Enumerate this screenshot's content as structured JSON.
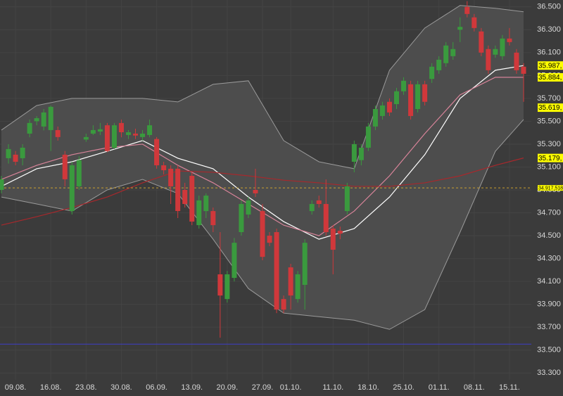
{
  "chart_data": {
    "type": "candlestick",
    "categories": [
      null,
      null,
      "09.08.",
      null,
      null,
      null,
      null,
      "16.08.",
      null,
      null,
      null,
      null,
      "23.08.",
      null,
      null,
      null,
      null,
      "30.08.",
      null,
      null,
      null,
      null,
      "06.09.",
      null,
      null,
      null,
      null,
      "13.09.",
      null,
      null,
      null,
      null,
      "20.09.",
      null,
      null,
      null,
      null,
      "27.09.",
      null,
      null,
      null,
      "01.10.",
      null,
      null,
      null,
      null,
      null,
      "11.10.",
      null,
      null,
      null,
      null,
      "18.10.",
      null,
      null,
      null,
      null,
      "25.10.",
      null,
      null,
      null,
      null,
      "01.11.",
      null,
      null,
      null,
      null,
      "08.11.",
      null,
      null,
      null,
      null,
      "15.11.",
      null,
      null
    ],
    "open": [
      34900,
      35177,
      35208,
      35177,
      35392,
      35500,
      35454,
      35423,
      35423,
      35208,
      34715,
      34931,
      35340,
      35392,
      35410,
      35465,
      35269,
      35485,
      35380,
      35392,
      35362,
      35380,
      35345,
      35115,
      35085,
      35085,
      34900,
      35023,
      34592,
      34715,
      34715,
      34162,
      33946,
      34131,
      34531,
      34685,
      34900,
      34715,
      34500,
      34531,
      33946,
      34223,
      33946,
      34070,
      34715,
      34808,
      34777,
      34562,
      34543,
      34715,
      35146,
      35160,
      35269,
      35454,
      35546,
      35670,
      35650,
      35762,
      35823,
      35607,
      35823,
      35870,
      35946,
      36008,
      36069,
      36300,
      36500,
      36408,
      36285,
      36131,
      36082,
      36069,
      36223,
      36100,
      35977
    ],
    "high": [
      35023,
      35300,
      35240,
      35300,
      35515,
      35545,
      35607,
      35638,
      35454,
      35240,
      35146,
      35195,
      35392,
      35465,
      35485,
      35485,
      35485,
      35515,
      35423,
      35435,
      35423,
      35515,
      35362,
      35146,
      35115,
      35115,
      34962,
      35054,
      34850,
      34870,
      34746,
      34531,
      34192,
      34480,
      34808,
      34838,
      35085,
      34777,
      34531,
      34562,
      33977,
      34254,
      34192,
      34469,
      34808,
      34850,
      34992,
      34592,
      34580,
      34962,
      35331,
      35300,
      35485,
      35638,
      35670,
      35700,
      35792,
      35885,
      35854,
      35854,
      35854,
      36008,
      36069,
      36192,
      36192,
      36408,
      36550,
      36438,
      36315,
      36162,
      36162,
      36254,
      36315,
      36131,
      36008
    ],
    "low": [
      34870,
      35130,
      35115,
      35115,
      35360,
      35465,
      35420,
      35240,
      35331,
      34931,
      34685,
      34900,
      35320,
      35380,
      35380,
      35230,
      35257,
      35360,
      35345,
      35345,
      35331,
      35360,
      35085,
      35035,
      34777,
      34654,
      34746,
      34592,
      34562,
      34654,
      34531,
      33608,
      33915,
      34100,
      34500,
      34654,
      34838,
      34285,
      34408,
      33823,
      33823,
      33854,
      33915,
      33854,
      34685,
      34746,
      34500,
      34162,
      34469,
      34685,
      35054,
      35115,
      35240,
      35423,
      35515,
      35546,
      35607,
      35731,
      35515,
      35577,
      35638,
      35835,
      35915,
      35977,
      36038,
      36192,
      36408,
      36285,
      36069,
      35915,
      36055,
      36038,
      36162,
      35915,
      35670
    ],
    "close": [
      34993,
      35257,
      35146,
      35269,
      35485,
      35527,
      35577,
      35626,
      35362,
      34993,
      35115,
      35160,
      35362,
      35423,
      35430,
      35240,
      35465,
      35404,
      35404,
      35375,
      35392,
      35465,
      35115,
      35072,
      34931,
      34715,
      34777,
      34623,
      34808,
      34850,
      34592,
      33977,
      34162,
      34438,
      34777,
      34808,
      34870,
      34315,
      34438,
      33854,
      33854,
      33977,
      34162,
      34438,
      34777,
      34777,
      34531,
      34377,
      34518,
      34931,
      35300,
      35269,
      35454,
      35607,
      35638,
      35577,
      35762,
      35854,
      35546,
      35823,
      35670,
      35977,
      36038,
      36162,
      36131,
      36325,
      36438,
      36315,
      36100,
      35946,
      36131,
      36223,
      36192,
      35946,
      35915
    ],
    "up_color": "#3a9a3e",
    "down_color": "#d0383b",
    "line_x": [
      0,
      5,
      10,
      15,
      20,
      25,
      30,
      35,
      40,
      45,
      50,
      55,
      60,
      65,
      70,
      74
    ],
    "band_color": "#4d4d4d",
    "upper_band": {
      "color": "#9a9a9a",
      "values": [
        35423,
        35638,
        35700,
        35700,
        35700,
        35669,
        35823,
        35854,
        35331,
        35146,
        35085,
        35946,
        36315,
        36512,
        36488,
        36457
      ]
    },
    "lower_band": {
      "color": "#9a9a9a",
      "values": [
        34838,
        34777,
        34715,
        34900,
        34992,
        34869,
        34469,
        34038,
        33823,
        33792,
        33761,
        33681,
        33854,
        34531,
        35238,
        35515
      ]
    },
    "lines": [
      {
        "color": "#ffffff",
        "values": [
          34931,
          35085,
          35146,
          35238,
          35331,
          35177,
          35085,
          34838,
          34623,
          34469,
          34562,
          34838,
          35208,
          35700,
          35946,
          35987
        ]
      },
      {
        "color": "#d9849a",
        "values": [
          34992,
          35115,
          35208,
          35269,
          35300,
          35115,
          34962,
          34777,
          34592,
          34500,
          34715,
          35023,
          35392,
          35731,
          35885,
          35884
        ]
      },
      {
        "color": "#a8282c",
        "values": [
          34592,
          34666,
          34746,
          34838,
          34962,
          35066,
          35054,
          35023,
          34985,
          34962,
          34931,
          34931,
          34962,
          35023,
          35115,
          35179
        ]
      }
    ],
    "levels": [
      {
        "value": 34917.518,
        "label": "34.917,518",
        "color": "#c8a030",
        "style": "dashed"
      },
      {
        "value": 33552,
        "color": "#3c3cc8",
        "style": "solid"
      }
    ],
    "marker_color": "#ffff00",
    "price_markers": [
      {
        "value": 35987,
        "label": "35.987,"
      },
      {
        "value": 35884,
        "label": "35.884,"
      },
      {
        "value": 35619,
        "label": "35.619,"
      },
      {
        "value": 35179,
        "label": "35.179,"
      }
    ],
    "ylim": [
      33240,
      36560
    ],
    "yticks": [
      {
        "value": 33300,
        "label": "33.300"
      },
      {
        "value": 33500,
        "label": "33.500"
      },
      {
        "value": 33700,
        "label": "33.700"
      },
      {
        "value": 33900,
        "label": "33.900"
      },
      {
        "value": 34100,
        "label": "34.100"
      },
      {
        "value": 34300,
        "label": "34.300"
      },
      {
        "value": 34500,
        "label": "34.500"
      },
      {
        "value": 34700,
        "label": "34.700"
      },
      {
        "value": 34900,
        "label": "34.900"
      },
      {
        "value": 35100,
        "label": "35.100"
      },
      {
        "value": 35300,
        "label": "35.300"
      },
      {
        "value": 35500,
        "label": "35.500"
      },
      {
        "value": 35700,
        "label": "35.700"
      },
      {
        "value": 35900,
        "label": "35.900"
      },
      {
        "value": 36100,
        "label": "36.100"
      },
      {
        "value": 36300,
        "label": "36.300"
      },
      {
        "value": 36500,
        "label": "36.500"
      }
    ],
    "grid": true
  }
}
